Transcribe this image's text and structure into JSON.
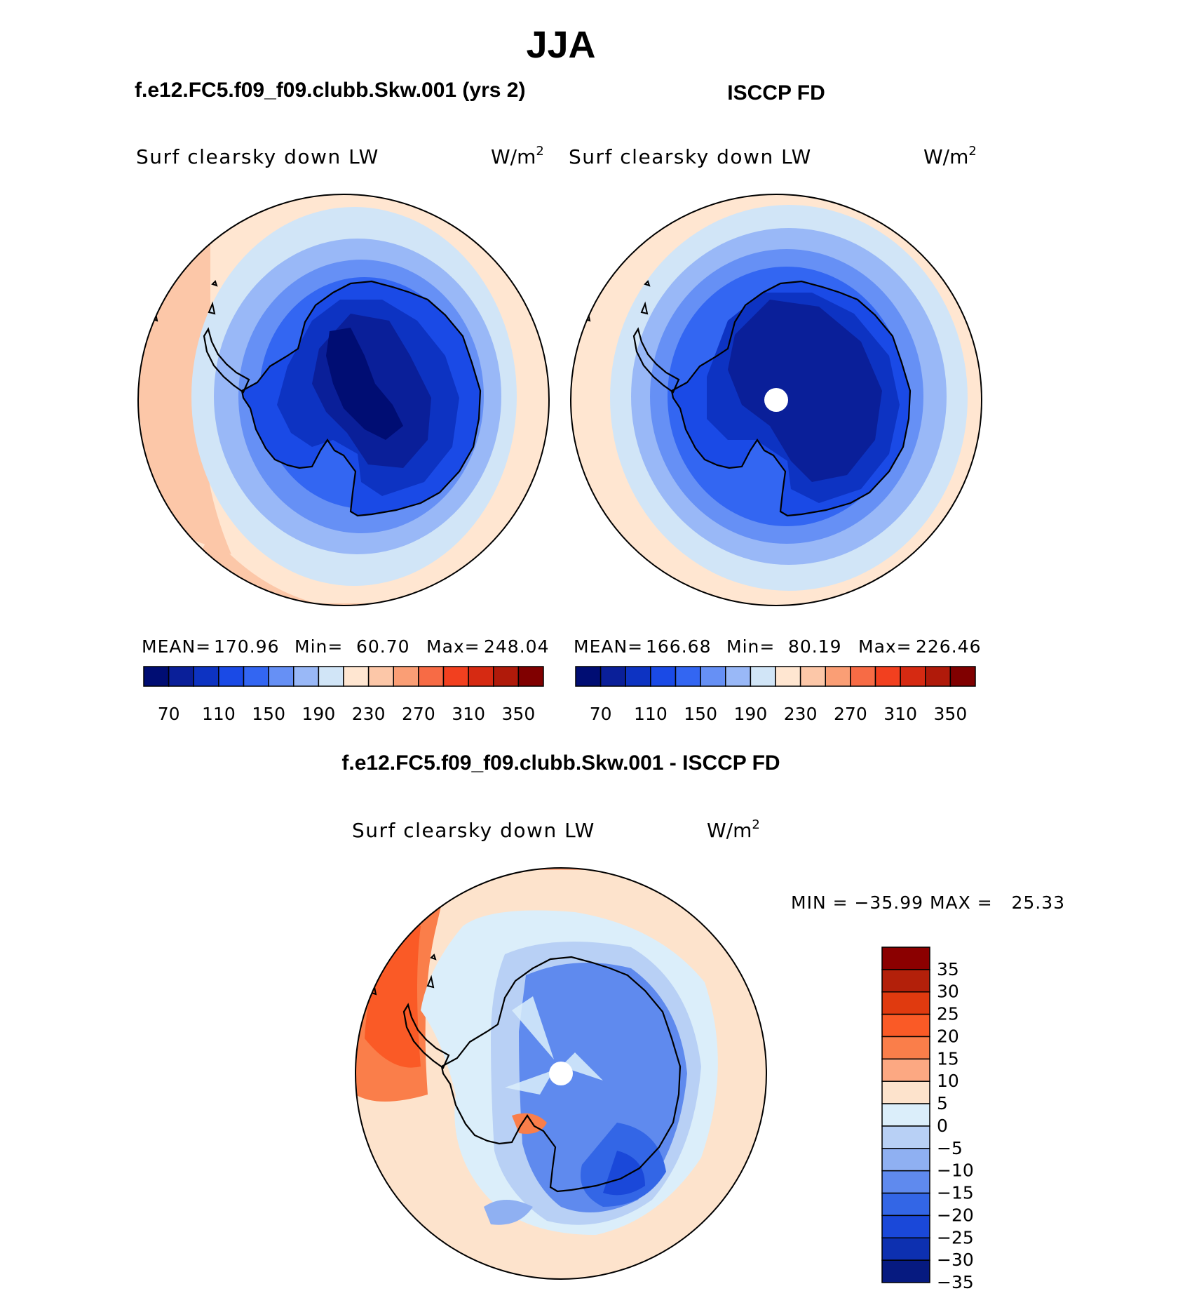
{
  "title": "JJA",
  "panels": [
    {
      "id": "model",
      "header": "f.e12.FC5.f09_f09.clubb.Skw.001 (yrs 2)",
      "variable": "Surf clearsky down LW",
      "units_base": "W/m",
      "units_exp": "2",
      "stats": {
        "mean_label": "MEAN=",
        "mean": "170.96",
        "min_label": "Min=",
        "min": "60.70",
        "max_label": "Max=",
        "max": "248.04"
      },
      "pole_masked": false
    },
    {
      "id": "obs",
      "header": "ISCCP FD",
      "variable": "Surf clearsky down LW",
      "units_base": "W/m",
      "units_exp": "2",
      "stats": {
        "mean_label": "MEAN=",
        "mean": "166.68",
        "min_label": "Min=",
        "min": "80.19",
        "max_label": "Max=",
        "max": "226.46"
      },
      "pole_masked": true
    }
  ],
  "abs_colorbar": {
    "colors": [
      "#000d73",
      "#0a1f99",
      "#0d33c2",
      "#1a4ae6",
      "#3366f2",
      "#6690f5",
      "#99b8f7",
      "#d1e5f7",
      "#ffe6d1",
      "#fcc7a8",
      "#fa9e75",
      "#f76b45",
      "#f2401f",
      "#d62a12",
      "#b01a0a",
      "#800000"
    ],
    "labels": [
      "70",
      "110",
      "150",
      "190",
      "230",
      "270",
      "310",
      "350"
    ]
  },
  "diff_panel": {
    "header": "f.e12.FC5.f09_f09.clubb.Skw.001 - ISCCP FD",
    "variable": "Surf clearsky down LW",
    "units_base": "W/m",
    "units_exp": "2",
    "stats_text": "MIN = −35.99 MAX =   25.33",
    "pole_masked": true
  },
  "diff_colorbar": {
    "colors_top_to_bottom": [
      "#8b0000",
      "#b3200a",
      "#e03a0f",
      "#fa5a26",
      "#fa7e4a",
      "#fca882",
      "#fde3cc",
      "#dbeefa",
      "#b8d0f5",
      "#8fb0f2",
      "#5f8aee",
      "#3366e6",
      "#1a48d9",
      "#0d30b0",
      "#061a80"
    ],
    "labels_top_to_bottom": [
      "35",
      "30",
      "25",
      "20",
      "15",
      "10",
      "5",
      "0",
      "−5",
      "−10",
      "−15",
      "−20",
      "−25",
      "−30",
      "−35"
    ]
  },
  "chart_data": [
    {
      "type": "heatmap",
      "projection": "south polar stereographic",
      "title": "f.e12.FC5.f09_f09.clubb.Skw.001 (yrs 2)",
      "variable": "Surf clearsky down LW",
      "units": "W/m2",
      "mean": 170.96,
      "min": 60.7,
      "max": 248.04,
      "contour_levels": [
        70,
        90,
        110,
        130,
        150,
        170,
        190,
        210,
        230,
        250,
        270,
        290,
        310,
        330,
        350
      ]
    },
    {
      "type": "heatmap",
      "projection": "south polar stereographic",
      "title": "ISCCP FD",
      "variable": "Surf clearsky down LW",
      "units": "W/m2",
      "mean": 166.68,
      "min": 80.19,
      "max": 226.46,
      "contour_levels": [
        70,
        90,
        110,
        130,
        150,
        170,
        190,
        210,
        230,
        250,
        270,
        290,
        310,
        330,
        350
      ]
    },
    {
      "type": "heatmap",
      "projection": "south polar stereographic",
      "title": "f.e12.FC5.f09_f09.clubb.Skw.001 - ISCCP FD",
      "variable": "Surf clearsky down LW",
      "units": "W/m2",
      "min": -35.99,
      "max": 25.33,
      "contour_levels": [
        -35,
        -30,
        -25,
        -20,
        -15,
        -10,
        -5,
        0,
        5,
        10,
        15,
        20,
        25,
        30,
        35
      ]
    }
  ]
}
